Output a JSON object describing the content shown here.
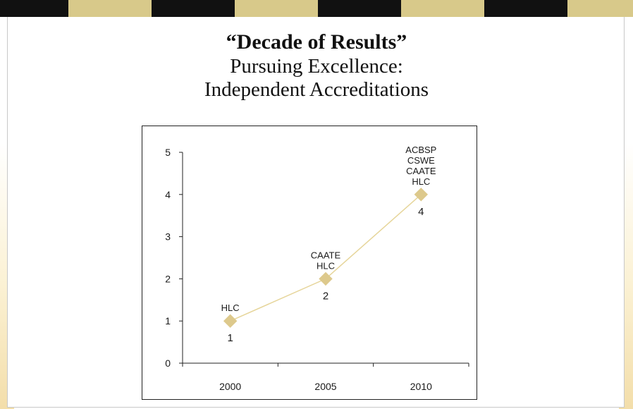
{
  "slide": {
    "title": "“Decade of Results”",
    "subtitle_line1": "Pursuing Excellence:",
    "subtitle_line2": "Independent Accreditations"
  },
  "colors": {
    "stripe_dark": "#111111",
    "stripe_gold": "#d8c98a",
    "series_line": "#e6d59a",
    "series_marker": "#ddc98c",
    "axis": "#222222"
  },
  "chart_data": {
    "type": "line",
    "x": [
      "2000",
      "2005",
      "2010"
    ],
    "ylim": [
      0,
      5
    ],
    "yticks": [
      0,
      1,
      2,
      3,
      4,
      5
    ],
    "series": [
      {
        "values": [
          1,
          2,
          4
        ],
        "data_labels": [
          "1",
          "2",
          "4"
        ]
      }
    ],
    "annotations": [
      [
        "HLC"
      ],
      [
        "CAATE",
        "HLC"
      ],
      [
        "ACBSP",
        "CSWE",
        "CAATE",
        "HLC"
      ]
    ],
    "grid": false,
    "legend": "none",
    "marker": "diamond"
  }
}
